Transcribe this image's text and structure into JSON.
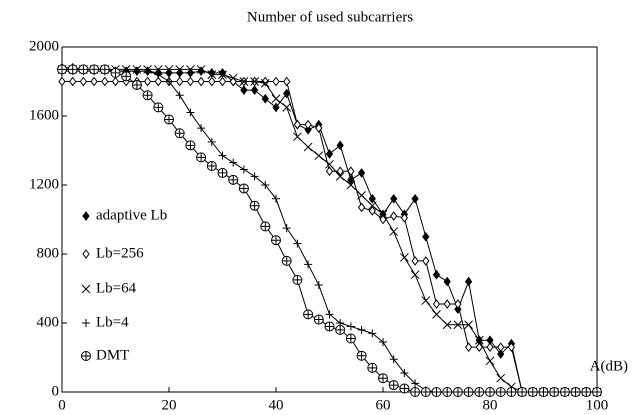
{
  "chart_data": {
    "type": "line",
    "title": "Number of used subcarriers",
    "x_label": "A(dB)",
    "x": [
      0,
      2,
      4,
      6,
      8,
      10,
      12,
      14,
      16,
      18,
      20,
      22,
      24,
      26,
      28,
      30,
      32,
      34,
      36,
      38,
      40,
      42,
      44,
      46,
      48,
      50,
      52,
      54,
      56,
      58,
      60,
      62,
      64,
      66,
      68,
      70,
      72,
      74,
      76,
      78,
      80,
      82,
      84,
      86,
      88,
      90,
      92,
      94,
      96,
      98,
      100
    ],
    "xlim": [
      0,
      100
    ],
    "xticks": [
      0,
      20,
      40,
      60,
      80,
      100
    ],
    "ylim": [
      0,
      2000
    ],
    "yticks": [
      0,
      400,
      800,
      1200,
      1600,
      2000
    ],
    "grid": false,
    "legend": "left",
    "series": [
      {
        "name": "adaptive Lb",
        "color": "#000000",
        "marker": "filled-diamond",
        "values": [
          1880,
          1880,
          1870,
          1870,
          1870,
          1860,
          1860,
          1860,
          1860,
          1850,
          1850,
          1850,
          1850,
          1860,
          1850,
          1850,
          1800,
          1750,
          1750,
          1700,
          1650,
          1730,
          1550,
          1520,
          1550,
          1380,
          1430,
          1230,
          1270,
          1120,
          1030,
          1120,
          1030,
          1120,
          900,
          680,
          640,
          480,
          640,
          300,
          300,
          220,
          280,
          0,
          0,
          0,
          0,
          0,
          0,
          0,
          0
        ]
      },
      {
        "name": "Lb=256",
        "color": "#000000",
        "marker": "open-diamond",
        "values": [
          1800,
          1800,
          1800,
          1800,
          1800,
          1800,
          1800,
          1800,
          1800,
          1800,
          1800,
          1800,
          1800,
          1800,
          1800,
          1800,
          1800,
          1800,
          1800,
          1800,
          1800,
          1800,
          1550,
          1550,
          1530,
          1280,
          1280,
          1280,
          1070,
          1050,
          1000,
          1020,
          1010,
          760,
          760,
          510,
          510,
          510,
          260,
          260,
          260,
          260,
          260,
          0,
          0,
          0,
          0,
          0,
          0,
          0,
          0
        ]
      },
      {
        "name": "Lb=64",
        "color": "#000000",
        "marker": "cross",
        "values": [
          1870,
          1870,
          1870,
          1870,
          1870,
          1870,
          1870,
          1870,
          1870,
          1870,
          1870,
          1870,
          1870,
          1870,
          1840,
          1840,
          1820,
          1800,
          1800,
          1790,
          1700,
          1650,
          1480,
          1420,
          1370,
          1320,
          1250,
          1200,
          1140,
          1080,
          1030,
          930,
          780,
          680,
          530,
          450,
          390,
          390,
          390,
          300,
          180,
          80,
          30,
          0,
          0,
          0,
          0,
          0,
          0,
          0,
          0
        ]
      },
      {
        "name": "Lb=4",
        "color": "#000000",
        "marker": "plus",
        "values": [
          1860,
          1860,
          1860,
          1860,
          1860,
          1860,
          1860,
          1860,
          1860,
          1840,
          1800,
          1720,
          1620,
          1530,
          1450,
          1370,
          1330,
          1290,
          1250,
          1200,
          1120,
          950,
          860,
          740,
          620,
          450,
          400,
          380,
          360,
          340,
          290,
          190,
          110,
          50,
          10,
          0,
          0,
          0,
          0,
          0,
          0,
          0,
          0,
          0,
          0,
          0,
          0,
          0,
          0,
          0,
          0
        ]
      },
      {
        "name": "DMT",
        "color": "#000000",
        "marker": "circle-plus",
        "values": [
          1870,
          1870,
          1870,
          1870,
          1870,
          1850,
          1830,
          1780,
          1720,
          1650,
          1580,
          1500,
          1430,
          1360,
          1310,
          1270,
          1230,
          1180,
          1080,
          960,
          880,
          760,
          650,
          450,
          420,
          380,
          360,
          310,
          210,
          140,
          80,
          40,
          20,
          0,
          0,
          0,
          0,
          0,
          0,
          0,
          0,
          0,
          0,
          0,
          0,
          0,
          0,
          0,
          0,
          0,
          0
        ]
      }
    ]
  }
}
